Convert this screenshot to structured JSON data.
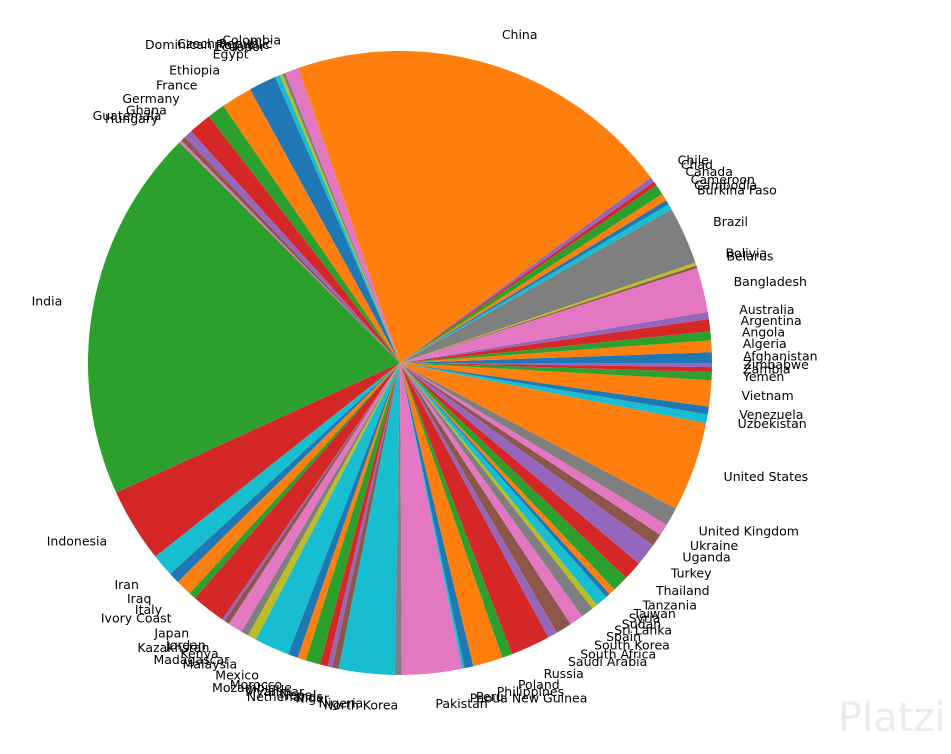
{
  "chart_data": {
    "type": "pie",
    "categories": [
      "Afghanistan",
      "Algeria",
      "Angola",
      "Argentina",
      "Australia",
      "Bangladesh",
      "Belarus",
      "Bolivia",
      "Brazil",
      "Burkina Faso",
      "Cambodia",
      "Cameroon",
      "Canada",
      "Chad",
      "Chile",
      "China",
      "Colombia",
      "Czech Republic",
      "Dominican Republic",
      "Ecuador",
      "Egypt",
      "Ethiopia",
      "France",
      "Germany",
      "Ghana",
      "Guatemala",
      "Hungary",
      "India",
      "Indonesia",
      "Iran",
      "Iraq",
      "Italy",
      "Ivory Coast",
      "Japan",
      "Jordan",
      "Kazakhstan",
      "Kenya",
      "Madagascar",
      "Malaysia",
      "Mexico",
      "Morocco",
      "Mozambique",
      "Myanmar",
      "Nepal",
      "Netherlands",
      "Niger",
      "Nigeria",
      "North Korea",
      "Pakistan",
      "Papua New Guinea",
      "Peru",
      "Philippines",
      "Poland",
      "Russia",
      "Saudi Arabia",
      "South Africa",
      "South Korea",
      "Spain",
      "Sri Lanka",
      "Sudan",
      "Syria",
      "Taiwan",
      "Tanzania",
      "Thailand",
      "Turkey",
      "Uganda",
      "Ukraine",
      "United Kingdom",
      "United States",
      "Uzbekistan",
      "Venezuela",
      "Vietnam",
      "Yemen",
      "Zambia",
      "Zimbabwe"
    ],
    "values": [
      39,
      44,
      33,
      45,
      26,
      165,
      9,
      12,
      213,
      21,
      17,
      27,
      38,
      16,
      19,
      1439,
      51,
      11,
      11,
      18,
      102,
      115,
      65,
      84,
      31,
      18,
      10,
      1380,
      274,
      84,
      40,
      60,
      26,
      126,
      10,
      19,
      54,
      28,
      32,
      129,
      37,
      31,
      54,
      29,
      17,
      24,
      206,
      26,
      221,
      9,
      33,
      110,
      38,
      146,
      35,
      59,
      51,
      47,
      21,
      44,
      17,
      24,
      60,
      70,
      84,
      46,
      44,
      68,
      331,
      33,
      28,
      97,
      30,
      18,
      15
    ],
    "colors": [
      "#1f77b4",
      "#ff7f0e",
      "#2ca02c",
      "#d62728",
      "#9467bd",
      "#e377c2",
      "#8c564b",
      "#bcbd22",
      "#7f7f7f",
      "#17becf",
      "#1f77b4",
      "#ff7f0e",
      "#2ca02c",
      "#d62728",
      "#9467bd",
      "#ff7f0e",
      "#e377c2",
      "#7f7f7f",
      "#bcbd22",
      "#17becf",
      "#1f77b4",
      "#ff7f0e",
      "#2ca02c",
      "#d62728",
      "#9467bd",
      "#8c564b",
      "#e377c2",
      "#2ca02c",
      "#d62728",
      "#17becf",
      "#1f77b4",
      "#ff7f0e",
      "#2ca02c",
      "#d62728",
      "#9467bd",
      "#8c564b",
      "#e377c2",
      "#7f7f7f",
      "#bcbd22",
      "#17becf",
      "#1f77b4",
      "#ff7f0e",
      "#2ca02c",
      "#d62728",
      "#9467bd",
      "#8c564b",
      "#17becf",
      "#7f7f7f",
      "#e377c2",
      "#17becf",
      "#1f77b4",
      "#ff7f0e",
      "#2ca02c",
      "#d62728",
      "#9467bd",
      "#8c564b",
      "#e377c2",
      "#7f7f7f",
      "#bcbd22",
      "#17becf",
      "#1f77b4",
      "#ff7f0e",
      "#2ca02c",
      "#d62728",
      "#9467bd",
      "#8c564b",
      "#e377c2",
      "#7f7f7f",
      "#ff7f0e",
      "#17becf",
      "#1f77b4",
      "#ff7f0e",
      "#2ca02c",
      "#d62728",
      "#9467bd"
    ],
    "watermark": "Platzi"
  }
}
